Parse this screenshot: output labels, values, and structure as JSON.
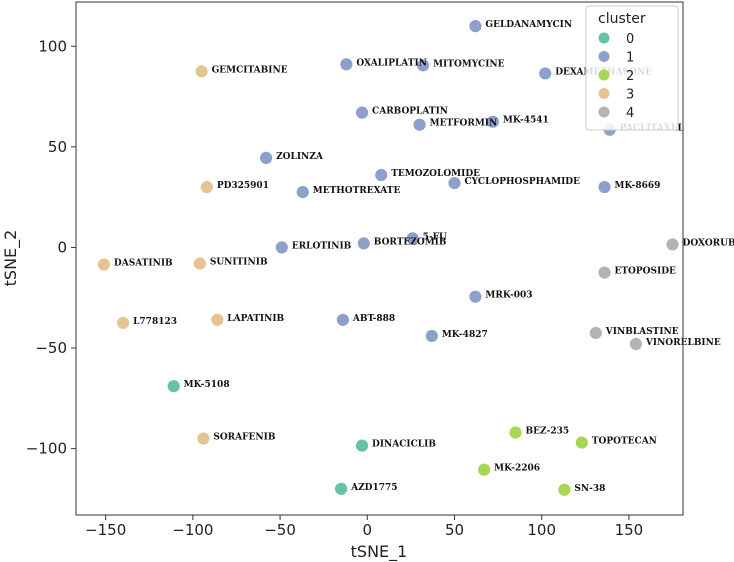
{
  "chart_data": {
    "type": "scatter",
    "xlabel": "tSNE_1",
    "ylabel": "tSNE_2",
    "xlim": [
      -167,
      181
    ],
    "ylim": [
      -133,
      122
    ],
    "xticks": [
      -150,
      -100,
      -50,
      0,
      50,
      100,
      150
    ],
    "yticks": [
      -100,
      -50,
      0,
      50,
      100
    ],
    "xtick_labels": [
      "−150",
      "−100",
      "−50",
      "0",
      "50",
      "100",
      "150"
    ],
    "ytick_labels": [
      "−100",
      "−50",
      "0",
      "50",
      "100"
    ],
    "legend": {
      "title": "cluster",
      "position": "top-right",
      "entries": [
        {
          "label": "0",
          "color": "#66c2a5"
        },
        {
          "label": "1",
          "color": "#8da0cb"
        },
        {
          "label": "2",
          "color": "#a6d854"
        },
        {
          "label": "3",
          "color": "#e5c494"
        },
        {
          "label": "4",
          "color": "#b3b3b3"
        }
      ]
    },
    "points": [
      {
        "label": "GELDANAMYCIN",
        "x": 62,
        "y": 110,
        "cluster": 1
      },
      {
        "label": "OXALIPLATIN",
        "x": -12,
        "y": 91,
        "cluster": 1
      },
      {
        "label": "MITOMYCINE",
        "x": 32,
        "y": 90.5,
        "cluster": 1
      },
      {
        "label": "DEXAMETHASONE",
        "x": 102,
        "y": 86.5,
        "cluster": 1
      },
      {
        "label": "GEMCITABINE",
        "x": -95,
        "y": 87.5,
        "cluster": 3
      },
      {
        "label": "CARBOPLATIN",
        "x": -3,
        "y": 67,
        "cluster": 1
      },
      {
        "label": "METFORMIN",
        "x": 30,
        "y": 61,
        "cluster": 1
      },
      {
        "label": "MK-4541",
        "x": 72,
        "y": 62.5,
        "cluster": 1
      },
      {
        "label": "PACLITAXEL",
        "x": 139,
        "y": 58.5,
        "cluster": 1
      },
      {
        "label": "ZOLINZA",
        "x": -58,
        "y": 44.5,
        "cluster": 1
      },
      {
        "label": "TEMOZOLOMIDE",
        "x": 8,
        "y": 36,
        "cluster": 1
      },
      {
        "label": "CYCLOPHOSPHAMIDE",
        "x": 50,
        "y": 32,
        "cluster": 1
      },
      {
        "label": "PD325901",
        "x": -92,
        "y": 30,
        "cluster": 3
      },
      {
        "label": "METHOTREXATE",
        "x": -37,
        "y": 27.5,
        "cluster": 1
      },
      {
        "label": "MK-8669",
        "x": 136,
        "y": 30,
        "cluster": 1
      },
      {
        "label": "5-FU",
        "x": 26,
        "y": 4.5,
        "cluster": 1
      },
      {
        "label": "BORTEZOMIB",
        "x": -2,
        "y": 2,
        "cluster": 1
      },
      {
        "label": "ERLOTINIB",
        "x": -49,
        "y": 0,
        "cluster": 1
      },
      {
        "label": "DOXORUBICIN",
        "x": 175,
        "y": 1.5,
        "cluster": 4
      },
      {
        "label": "DASATINIB",
        "x": -151,
        "y": -8.5,
        "cluster": 3
      },
      {
        "label": "SUNITINIB",
        "x": -96,
        "y": -8,
        "cluster": 3
      },
      {
        "label": "ETOPOSIDE",
        "x": 136,
        "y": -12.5,
        "cluster": 4
      },
      {
        "label": "MRK-003",
        "x": 62,
        "y": -24.5,
        "cluster": 1
      },
      {
        "label": "L778123",
        "x": -140,
        "y": -37.5,
        "cluster": 3
      },
      {
        "label": "LAPATINIB",
        "x": -86,
        "y": -36,
        "cluster": 3
      },
      {
        "label": "ABT-888",
        "x": -14,
        "y": -36,
        "cluster": 1
      },
      {
        "label": "MK-4827",
        "x": 37,
        "y": -44,
        "cluster": 1
      },
      {
        "label": "VINBLASTINE",
        "x": 131,
        "y": -42.5,
        "cluster": 4
      },
      {
        "label": "VINORELBINE",
        "x": 154,
        "y": -48,
        "cluster": 4
      },
      {
        "label": "MK-5108",
        "x": -111,
        "y": -69,
        "cluster": 0
      },
      {
        "label": "BEZ-235",
        "x": 85,
        "y": -92,
        "cluster": 2
      },
      {
        "label": "TOPOTECAN",
        "x": 123,
        "y": -97,
        "cluster": 2
      },
      {
        "label": "SORAFENIB",
        "x": -94,
        "y": -95,
        "cluster": 3
      },
      {
        "label": "DINACICLIB",
        "x": -3,
        "y": -98.5,
        "cluster": 0
      },
      {
        "label": "MK-2206",
        "x": 67,
        "y": -110.5,
        "cluster": 2
      },
      {
        "label": "AZD1775",
        "x": -15,
        "y": -120,
        "cluster": 0
      },
      {
        "label": "SN-38",
        "x": 113,
        "y": -120.5,
        "cluster": 2
      }
    ]
  }
}
